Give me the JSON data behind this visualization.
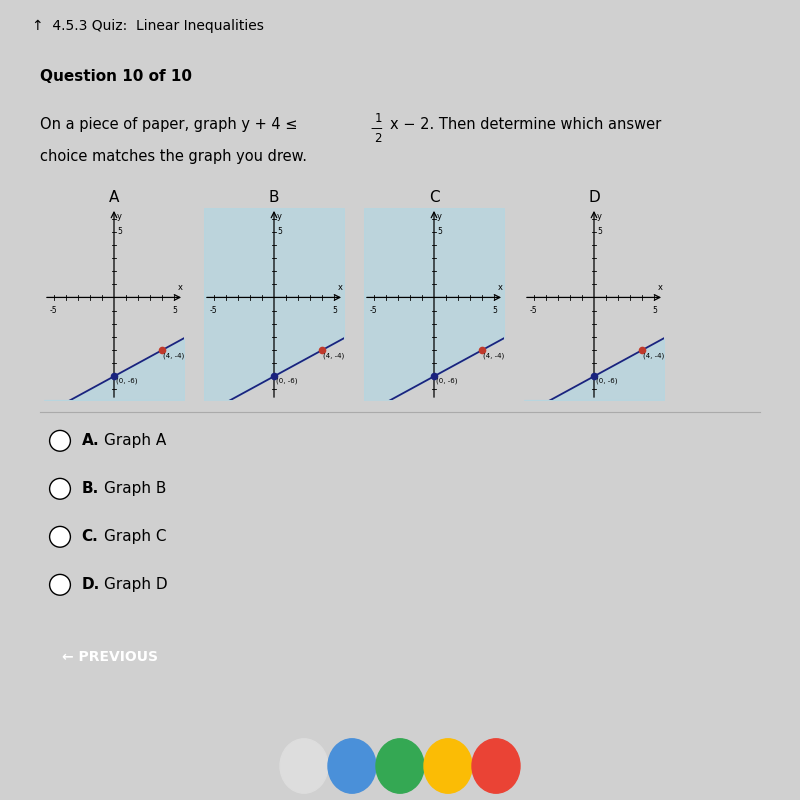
{
  "title_bar": "4.5.3 Quiz: Linear Inequalities",
  "question": "Question 10 of 10",
  "graph_labels": [
    "A",
    "B",
    "C",
    "D"
  ],
  "point1": [
    0,
    -6
  ],
  "point2": [
    4,
    -4
  ],
  "point1_label": "(0, -6)",
  "point2_label": "(4, -4)",
  "shade_color": "#add8e6",
  "shade_alpha": 0.55,
  "line_color": "#1a237e",
  "dot_color_solid": "#1a237e",
  "dot_color_open": "#c0392b",
  "background_page": "#d0d0d0",
  "background_paper": "#f0eeea",
  "choices": [
    "A. Graph A",
    "B. Graph B",
    "C. Graph C",
    "D. Graph D"
  ],
  "button_text": "← PREVIOUS",
  "button_color": "#2196f3",
  "graph_A_shade": "lower_left",
  "graph_B_shade": "upper_right",
  "graph_C_shade": "upper_right",
  "graph_D_shade": "lower_right",
  "taskbar_color": "#3a2060",
  "title_bg": "#c0c0c0"
}
